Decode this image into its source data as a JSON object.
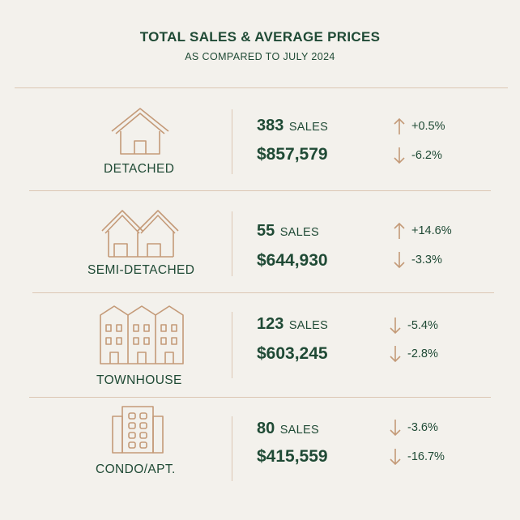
{
  "header": {
    "title": "TOTAL SALES & AVERAGE PRICES",
    "subtitle": "AS COMPARED TO JULY 2024"
  },
  "rows": [
    {
      "type": "DETACHED",
      "icon": "house-icon",
      "sales": "383",
      "sales_unit": "SALES",
      "price": "$857,579",
      "sales_change": "+0.5%",
      "sales_dir": "up",
      "price_change": "-6.2%",
      "price_dir": "down"
    },
    {
      "type": "SEMI-DETACHED",
      "icon": "semi-detached-icon",
      "sales": "55",
      "sales_unit": "SALES",
      "price": "$644,930",
      "sales_change": "+14.6%",
      "sales_dir": "up",
      "price_change": "-3.3%",
      "price_dir": "down"
    },
    {
      "type": "TOWNHOUSE",
      "icon": "townhouse-icon",
      "sales": "123",
      "sales_unit": "SALES",
      "price": "$603,245",
      "sales_change": "-5.4%",
      "sales_dir": "down",
      "price_change": "-2.8%",
      "price_dir": "down"
    },
    {
      "type": "CONDO/APT.",
      "icon": "condo-building-icon",
      "sales": "80",
      "sales_unit": "SALES",
      "price": "$415,559",
      "sales_change": "-3.6%",
      "sales_dir": "down",
      "price_change": "-16.7%",
      "price_dir": "down"
    }
  ],
  "colors": {
    "background": "#f3f1ec",
    "text": "#1f4a35",
    "accent": "#c49a78",
    "divider": "#dcc7b4"
  }
}
